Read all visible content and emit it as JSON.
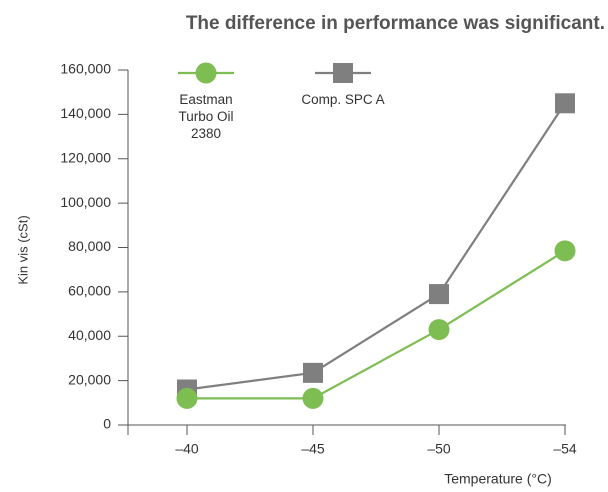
{
  "chart_data": {
    "type": "line",
    "title": "The difference in performance was significant.",
    "x_label": "Temperature (°C)",
    "y_label": "Kin vis (cSt)",
    "categories": [
      "–40",
      "–45",
      "–50",
      "–54"
    ],
    "series": [
      {
        "name": "Eastman Turbo Oil 2380",
        "color": "#7dbd52",
        "marker": "circle",
        "values": [
          12000,
          12000,
          43000,
          78500
        ]
      },
      {
        "name": "Comp. SPC A",
        "color": "#7f7f7f",
        "marker": "square",
        "values": [
          16000,
          23500,
          59000,
          145000
        ]
      }
    ],
    "ylim": [
      0,
      160000
    ],
    "yticks": [
      0,
      {
        "value": 20000,
        "label": "20,000"
      },
      {
        "value": 40000,
        "label": "40,000"
      },
      {
        "value": 60000,
        "label": "60,000"
      },
      {
        "value": 80000,
        "label": "80,000"
      },
      {
        "value": 100000,
        "label": "100,000"
      },
      {
        "value": 120000,
        "label": "120,000"
      },
      {
        "value": 140000,
        "label": "140,000"
      },
      {
        "value": 160000,
        "label": "160,000"
      }
    ],
    "grid": false
  }
}
